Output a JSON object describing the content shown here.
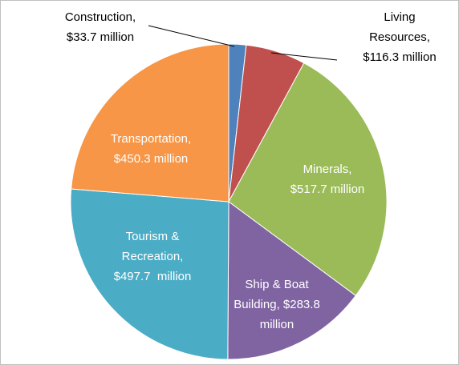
{
  "chart_data": {
    "type": "pie",
    "values": [
      33.7,
      116.3,
      517.7,
      283.8,
      497.7,
      450.3
    ],
    "value_labels": [
      [
        "Construction,",
        "$33.7 million"
      ],
      [
        "Living",
        "Resources,",
        "$116.3 million"
      ],
      [
        "Minerals,",
        "$517.7 million"
      ],
      [
        "Ship & Boat",
        "Building, $283.8",
        "million"
      ],
      [
        "Tourism &",
        "Recreation,",
        "$497.7  million"
      ],
      [
        "Transportation,",
        "$450.3 million"
      ]
    ],
    "colors": [
      "#4f81bd",
      "#c0504d",
      "#9bbb59",
      "#8064a2",
      "#4bacc6",
      "#f79646"
    ]
  }
}
